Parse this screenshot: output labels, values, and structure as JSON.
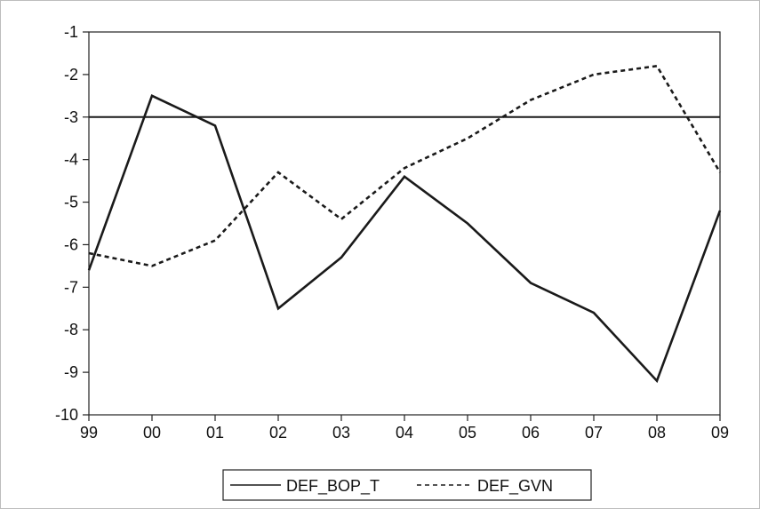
{
  "chart_data": {
    "type": "line",
    "title": "",
    "xlabel": "",
    "ylabel": "",
    "categories": [
      "99",
      "00",
      "01",
      "02",
      "03",
      "04",
      "05",
      "06",
      "07",
      "08",
      "09"
    ],
    "ylim": [
      -10,
      -1
    ],
    "yticks": [
      -10,
      -9,
      -8,
      -7,
      -6,
      -5,
      -4,
      -3,
      -2,
      -1
    ],
    "grid": false,
    "legend_position": "bottom-center",
    "reference_line": {
      "value": -3,
      "style": "solid"
    },
    "series": [
      {
        "name": "DEF_BOP_T",
        "style": "solid",
        "values": [
          -6.6,
          -2.5,
          -3.2,
          -7.5,
          -6.3,
          -4.4,
          -5.5,
          -6.9,
          -7.6,
          -9.2,
          -5.2
        ]
      },
      {
        "name": "DEF_GVN",
        "style": "dashed",
        "values": [
          -6.2,
          -6.5,
          -5.9,
          -4.3,
          -5.4,
          -4.2,
          -3.5,
          -2.6,
          -2.0,
          -1.8,
          -4.3
        ]
      }
    ],
    "colors": {
      "line": "#1a1a1a",
      "axis": "#222222"
    }
  }
}
